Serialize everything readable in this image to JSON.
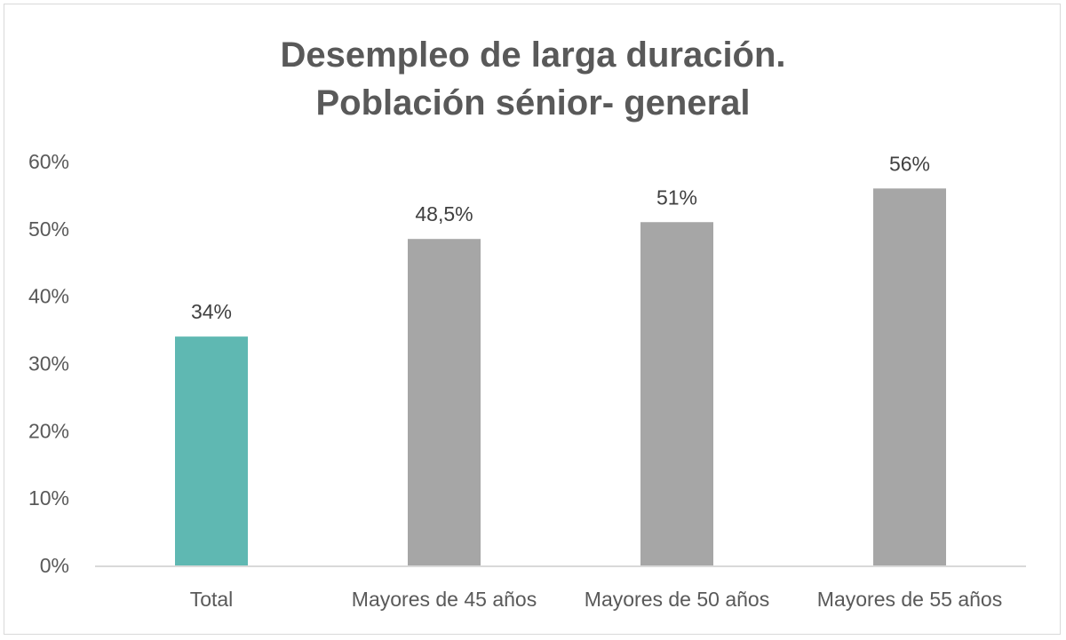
{
  "chart_data": {
    "type": "bar",
    "title": [
      "Desempleo de larga duración.",
      "Población sénior- general"
    ],
    "categories": [
      "Total",
      "Mayores de 45 años",
      "Mayores de 50 años",
      "Mayores de 55 años"
    ],
    "values": [
      34,
      48.5,
      51,
      56
    ],
    "data_labels": [
      "34%",
      "48,5%",
      "51%",
      "56%"
    ],
    "colors": [
      "#5fb8b2",
      "#a6a6a6",
      "#a6a6a6",
      "#a6a6a6"
    ],
    "ylim": [
      0,
      60
    ],
    "yticks": [
      "0%",
      "10%",
      "20%",
      "30%",
      "40%",
      "50%",
      "60%"
    ],
    "xlabel": "",
    "ylabel": "",
    "grid": false,
    "legend": "none"
  }
}
